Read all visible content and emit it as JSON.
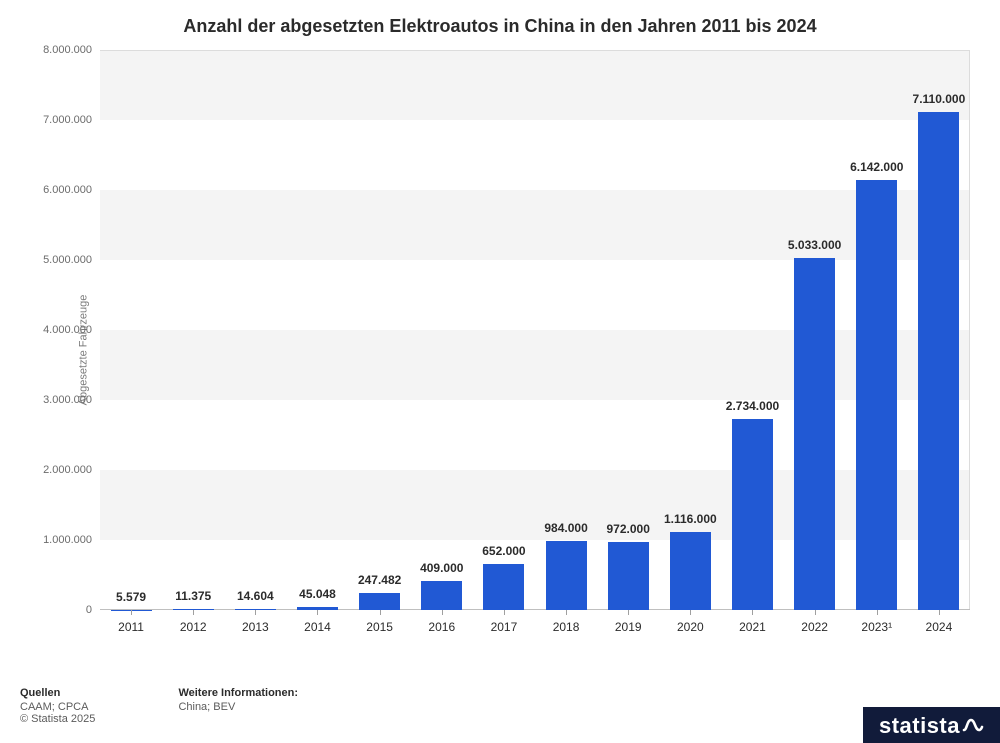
{
  "title": "Anzahl der abgesetzten Elektroautos in China in den Jahren 2011 bis 2024",
  "ylabel": "Abgesetzte Fahrzeuge",
  "chart": {
    "type": "bar",
    "bar_color": "#2159d4",
    "background_color": "#ffffff",
    "band_color": "#f4f4f4",
    "grid_line_color": "#dcdcdc",
    "ylim": [
      0,
      8000000
    ],
    "ytick_step": 1000000,
    "yticks": [
      "0",
      "1.000.000",
      "2.000.000",
      "3.000.000",
      "4.000.000",
      "5.000.000",
      "6.000.000",
      "7.000.000",
      "8.000.000"
    ],
    "categories": [
      "2011",
      "2012",
      "2013",
      "2014",
      "2015",
      "2016",
      "2017",
      "2018",
      "2019",
      "2020",
      "2021",
      "2022",
      "2023¹",
      "2024"
    ],
    "values": [
      5579,
      11375,
      14604,
      45048,
      247482,
      409000,
      652000,
      984000,
      972000,
      1116000,
      2734000,
      5033000,
      6142000,
      7110000
    ],
    "value_labels": [
      "5.579",
      "11.375",
      "14.604",
      "45.048",
      "247.482",
      "409.000",
      "652.000",
      "984.000",
      "972.000",
      "1.116.000",
      "2.734.000",
      "5.033.000",
      "6.142.000",
      "7.110.000"
    ],
    "bar_width_ratio": 0.66,
    "title_fontsize": 18,
    "label_fontsize": 12,
    "tick_fontsize": 11
  },
  "footer": {
    "sources_label": "Quellen",
    "sources_text": "CAAM; CPCA",
    "copyright": "© Statista 2025",
    "more_label": "Weitere Informationen:",
    "more_text": "China; BEV"
  },
  "logo_text": "statista",
  "logo_bg": "#111b3a"
}
